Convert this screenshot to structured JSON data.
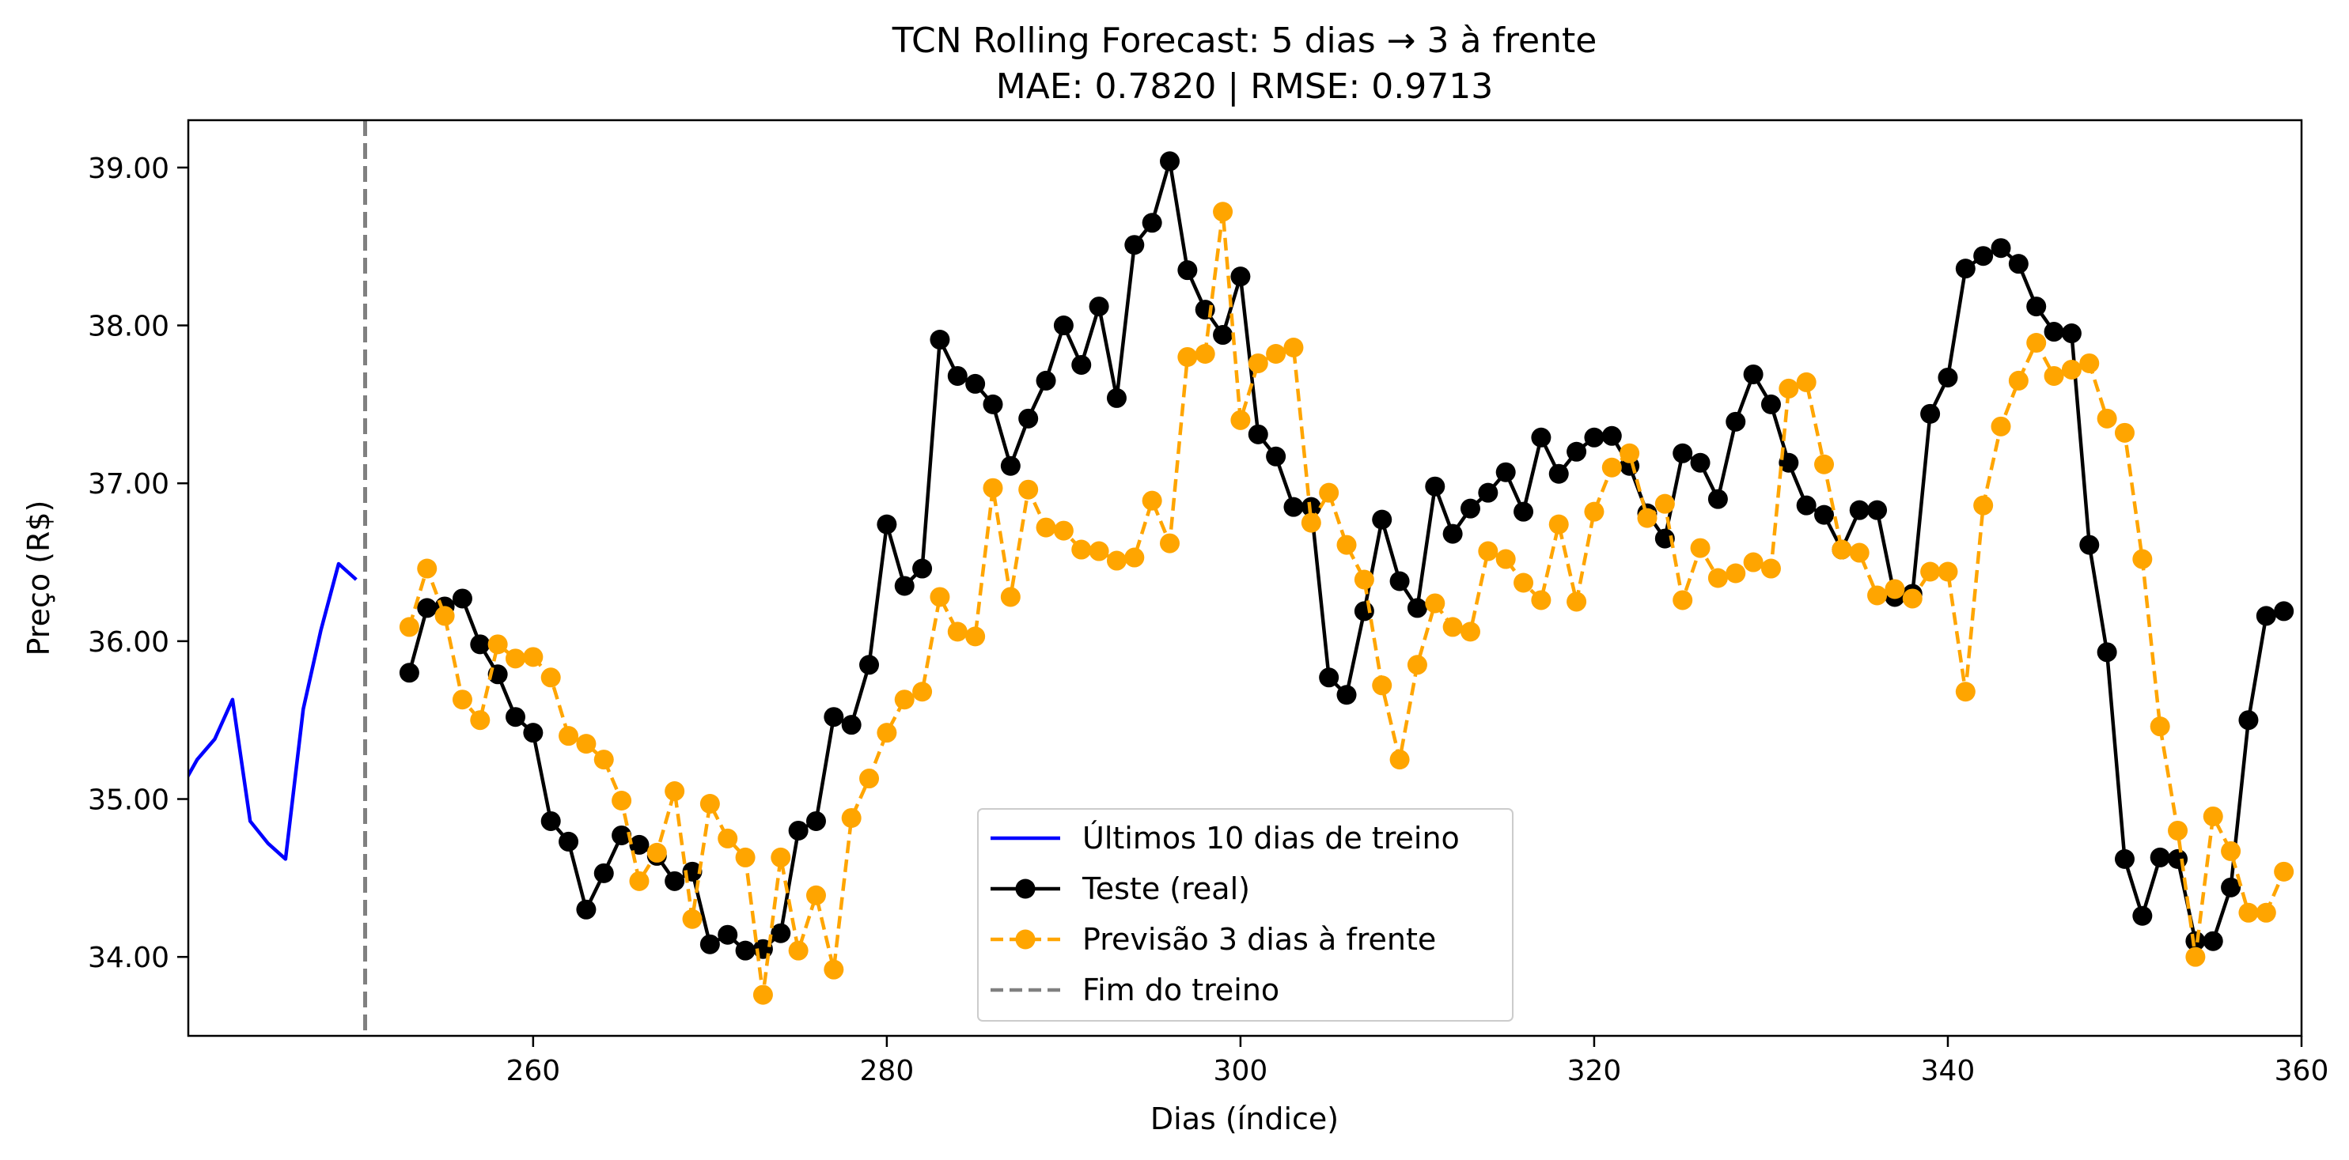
{
  "chart_data": {
    "type": "line",
    "title": "TCN Rolling Forecast: 5 dias → 3 à frente",
    "subtitle": "MAE: 0.7820 | RMSE: 0.9713",
    "xlabel": "Dias (índice)",
    "ylabel": "Preço (R$)",
    "xlim": [
      240.5,
      360
    ],
    "ylim": [
      33.5,
      39.3
    ],
    "x_ticks": [
      260,
      280,
      300,
      320,
      340,
      360
    ],
    "y_ticks": [
      34.0,
      35.0,
      36.0,
      37.0,
      38.0,
      39.0
    ],
    "y_tick_labels": [
      "34.00",
      "35.00",
      "36.00",
      "37.00",
      "38.00",
      "39.00"
    ],
    "grid": false,
    "legend_position": "lower-center",
    "vline": {
      "x": 250.5,
      "name": "Fim do treino",
      "color": "#808080"
    },
    "series": [
      {
        "name": "Últimos 10 dias de treino",
        "color": "#0000ff",
        "style": "solid",
        "marker": false,
        "x": [
          240,
          241,
          242,
          243,
          244,
          245,
          246,
          247,
          248,
          249,
          250
        ],
        "values": [
          35.05,
          35.25,
          35.38,
          35.63,
          34.86,
          34.72,
          34.62,
          35.57,
          36.07,
          36.49,
          36.39
        ]
      },
      {
        "name": "Teste (real)",
        "color": "#000000",
        "style": "solid",
        "marker": true,
        "x": [
          253,
          254,
          255,
          256,
          257,
          258,
          259,
          260,
          261,
          262,
          263,
          264,
          265,
          266,
          267,
          268,
          269,
          270,
          271,
          272,
          273,
          274,
          275,
          276,
          277,
          278,
          279,
          280,
          281,
          282,
          283,
          284,
          285,
          286,
          287,
          288,
          289,
          290,
          291,
          292,
          293,
          294,
          295,
          296,
          297,
          298,
          299,
          300,
          301,
          302,
          303,
          304,
          305,
          306,
          307,
          308,
          309,
          310,
          311,
          312,
          313,
          314,
          315,
          316,
          317,
          318,
          319,
          320,
          321,
          322,
          323,
          324,
          325,
          326,
          327,
          328,
          329,
          330,
          331,
          332,
          333,
          334,
          335,
          336,
          337,
          338,
          339,
          340,
          341,
          342,
          343,
          344,
          345,
          346,
          347,
          348,
          349,
          350,
          351,
          352,
          353,
          354,
          355,
          356,
          357,
          358,
          359
        ],
        "values": [
          35.8,
          36.21,
          36.22,
          36.27,
          35.98,
          35.79,
          35.52,
          35.42,
          34.86,
          34.73,
          34.3,
          34.53,
          34.77,
          34.71,
          34.64,
          34.48,
          34.54,
          34.08,
          34.14,
          34.04,
          34.05,
          34.15,
          34.8,
          34.86,
          35.52,
          35.47,
          35.85,
          36.74,
          36.35,
          36.46,
          37.91,
          37.68,
          37.63,
          37.5,
          37.11,
          37.41,
          37.65,
          38.0,
          37.75,
          38.12,
          37.54,
          38.51,
          38.65,
          39.04,
          38.35,
          38.1,
          37.94,
          38.31,
          37.31,
          37.17,
          36.85,
          36.85,
          35.77,
          35.66,
          36.19,
          36.77,
          36.38,
          36.21,
          36.98,
          36.68,
          36.84,
          36.94,
          37.07,
          36.82,
          37.29,
          37.06,
          37.2,
          37.29,
          37.3,
          37.11,
          36.81,
          36.65,
          37.19,
          37.13,
          36.9,
          37.39,
          37.69,
          37.5,
          37.13,
          36.86,
          36.8,
          36.58,
          36.83,
          36.83,
          36.28,
          36.3,
          37.44,
          37.67,
          38.36,
          38.44,
          38.49,
          38.39,
          38.12,
          37.96,
          37.95,
          36.61,
          35.93,
          34.62,
          34.26,
          34.63,
          34.62,
          34.1,
          34.1,
          34.44,
          35.5,
          36.16,
          36.19
        ]
      },
      {
        "name": "Previsão 3 dias à frente",
        "color": "#ffa500",
        "style": "dashed",
        "marker": true,
        "x": [
          253,
          254,
          255,
          256,
          257,
          258,
          259,
          260,
          261,
          262,
          263,
          264,
          265,
          266,
          267,
          268,
          269,
          270,
          271,
          272,
          273,
          274,
          275,
          276,
          277,
          278,
          279,
          280,
          281,
          282,
          283,
          284,
          285,
          286,
          287,
          288,
          289,
          290,
          291,
          292,
          293,
          294,
          295,
          296,
          297,
          298,
          299,
          300,
          301,
          302,
          303,
          304,
          305,
          306,
          307,
          308,
          309,
          310,
          311,
          312,
          313,
          314,
          315,
          316,
          317,
          318,
          319,
          320,
          321,
          322,
          323,
          324,
          325,
          326,
          327,
          328,
          329,
          330,
          331,
          332,
          333,
          334,
          335,
          336,
          337,
          338,
          339,
          340,
          341,
          342,
          343,
          344,
          345,
          346,
          347,
          348,
          349,
          350,
          351,
          352,
          353,
          354,
          355,
          356,
          357,
          358,
          359
        ],
        "values": [
          36.09,
          36.46,
          36.16,
          35.63,
          35.5,
          35.98,
          35.89,
          35.9,
          35.77,
          35.4,
          35.35,
          35.25,
          34.99,
          34.48,
          34.66,
          35.05,
          34.24,
          34.97,
          34.75,
          34.63,
          33.76,
          34.63,
          34.04,
          34.39,
          33.92,
          34.88,
          35.13,
          35.42,
          35.63,
          35.68,
          36.28,
          36.06,
          36.03,
          36.97,
          36.28,
          36.96,
          36.72,
          36.7,
          36.58,
          36.57,
          36.51,
          36.53,
          36.89,
          36.62,
          37.8,
          37.82,
          38.72,
          37.4,
          37.76,
          37.82,
          37.86,
          36.75,
          36.94,
          36.61,
          36.39,
          35.72,
          35.25,
          35.85,
          36.24,
          36.09,
          36.06,
          36.57,
          36.52,
          36.37,
          36.26,
          36.74,
          36.25,
          36.82,
          37.1,
          37.19,
          36.78,
          36.87,
          36.26,
          36.59,
          36.4,
          36.43,
          36.5,
          36.46,
          37.6,
          37.64,
          37.12,
          36.58,
          36.56,
          36.29,
          36.33,
          36.27,
          36.44,
          36.44,
          35.68,
          36.86,
          37.36,
          37.65,
          37.89,
          37.68,
          37.72,
          37.76,
          37.41,
          37.32,
          36.52,
          35.46,
          34.8,
          34.0,
          34.89,
          34.67,
          34.28,
          34.28,
          34.54
        ]
      }
    ],
    "legend": [
      {
        "label": "Últimos 10 dias de treino",
        "color": "#0000ff",
        "style": "solid",
        "marker": false
      },
      {
        "label": "Teste (real)",
        "color": "#000000",
        "style": "solid",
        "marker": true
      },
      {
        "label": "Previsão 3 dias à frente",
        "color": "#ffa500",
        "style": "dashed",
        "marker": true
      },
      {
        "label": "Fim do treino",
        "color": "#808080",
        "style": "dashed",
        "marker": false
      }
    ]
  }
}
